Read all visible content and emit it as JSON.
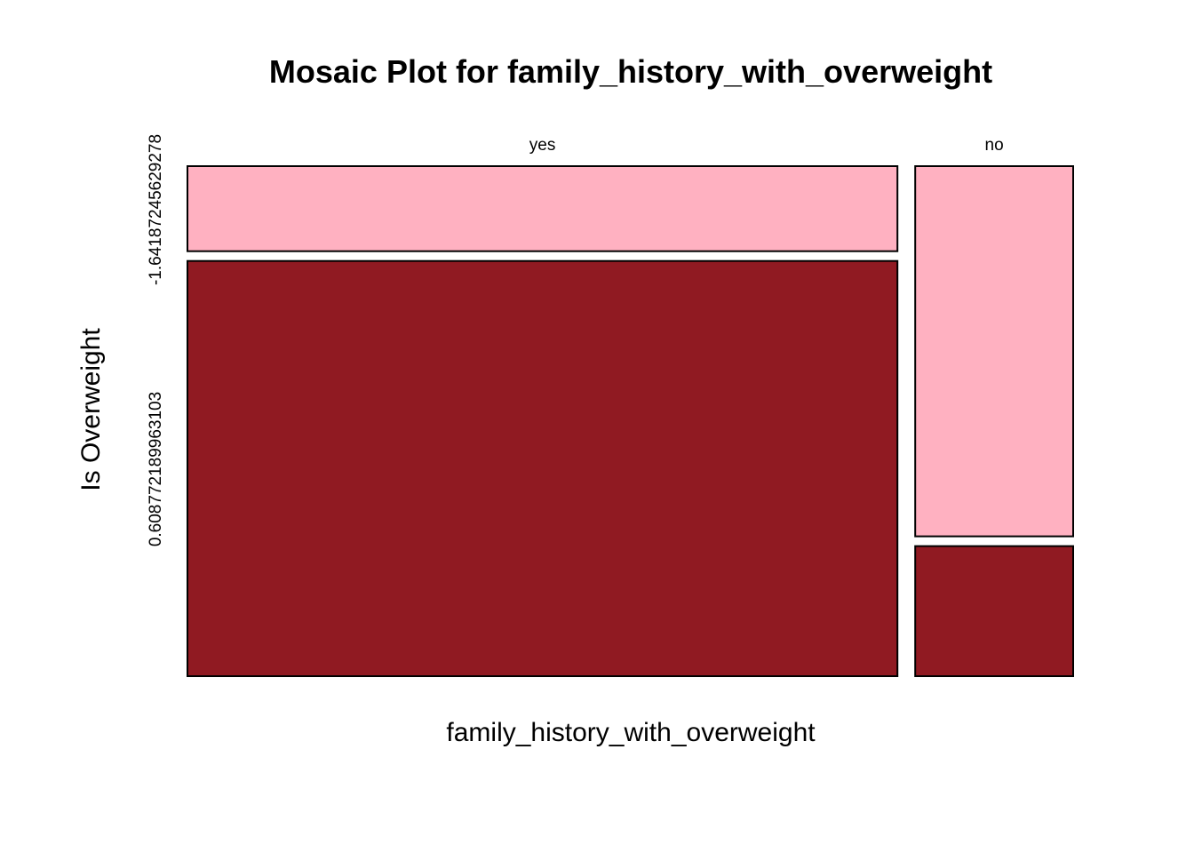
{
  "chart_data": {
    "type": "mosaic",
    "title": "Mosaic Plot for family_history_with_overweight",
    "xlabel": "family_history_with_overweight",
    "ylabel": "Is Overweight",
    "x_categories": [
      "yes",
      "no"
    ],
    "y_categories": [
      "-1.64187245629278",
      "0.608772189963103"
    ],
    "x_proportions": [
      0.818,
      0.182
    ],
    "cells": [
      {
        "x": "yes",
        "y": "-1.64187245629278",
        "fraction_within_x": 0.17
      },
      {
        "x": "yes",
        "y": "0.608772189963103",
        "fraction_within_x": 0.83
      },
      {
        "x": "no",
        "y": "-1.64187245629278",
        "fraction_within_x": 0.74
      },
      {
        "x": "no",
        "y": "0.608772189963103",
        "fraction_within_x": 0.26
      }
    ],
    "colors": {
      "-1.64187245629278": "#ffb1c1",
      "0.608772189963103": "#901a22"
    }
  }
}
